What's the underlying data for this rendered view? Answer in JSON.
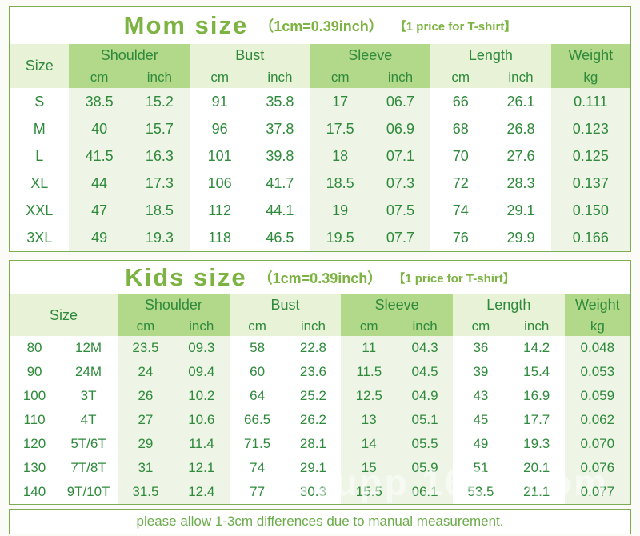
{
  "mom": {
    "title": "Mom size",
    "subtitle": "（1cm=0.39inch）",
    "tag": "【1 price for T-shirt】",
    "headers": {
      "size": "Size",
      "shoulder": "Shoulder",
      "bust": "Bust",
      "sleeve": "Sleeve",
      "length": "Length",
      "weight": "Weight",
      "cm": "cm",
      "inch": "inch",
      "kg": "kg"
    },
    "rows": [
      [
        "S",
        "38.5",
        "15.2",
        "91",
        "35.8",
        "17",
        "06.7",
        "66",
        "26.1",
        "0.111"
      ],
      [
        "M",
        "40",
        "15.7",
        "96",
        "37.8",
        "17.5",
        "06.9",
        "68",
        "26.8",
        "0.123"
      ],
      [
        "L",
        "41.5",
        "16.3",
        "101",
        "39.8",
        "18",
        "07.1",
        "70",
        "27.6",
        "0.125"
      ],
      [
        "XL",
        "44",
        "17.3",
        "106",
        "41.7",
        "18.5",
        "07.3",
        "72",
        "28.3",
        "0.137"
      ],
      [
        "XXL",
        "47",
        "18.5",
        "112",
        "44.1",
        "19",
        "07.5",
        "74",
        "29.1",
        "0.150"
      ],
      [
        "3XL",
        "49",
        "19.3",
        "118",
        "46.5",
        "19.5",
        "07.7",
        "76",
        "29.9",
        "0.166"
      ]
    ]
  },
  "kids": {
    "title": "Kids size",
    "subtitle": "（1cm=0.39inch）",
    "tag": "【1 price for T-shirt】",
    "headers": {
      "size": "Size",
      "shoulder": "Shoulder",
      "bust": "Bust",
      "sleeve": "Sleeve",
      "length": "Length",
      "weight": "Weight",
      "cm": "cm",
      "inch": "inch",
      "kg": "kg"
    },
    "rows": [
      [
        "80",
        "12M",
        "23.5",
        "09.3",
        "58",
        "22.8",
        "11",
        "04.3",
        "36",
        "14.2",
        "0.048"
      ],
      [
        "90",
        "24M",
        "24",
        "09.4",
        "60",
        "23.6",
        "11.5",
        "04.5",
        "39",
        "15.4",
        "0.053"
      ],
      [
        "100",
        "3T",
        "26",
        "10.2",
        "64",
        "25.2",
        "12.5",
        "04.9",
        "43",
        "16.9",
        "0.059"
      ],
      [
        "110",
        "4T",
        "27",
        "10.6",
        "66.5",
        "26.2",
        "13",
        "05.1",
        "45",
        "17.7",
        "0.062"
      ],
      [
        "120",
        "5T/6T",
        "29",
        "11.4",
        "71.5",
        "28.1",
        "14",
        "05.5",
        "49",
        "19.3",
        "0.070"
      ],
      [
        "130",
        "7T/8T",
        "31",
        "12.1",
        "74",
        "29.1",
        "15",
        "05.9",
        "51",
        "20.1",
        "0.076"
      ],
      [
        "140",
        "9T/10T",
        "31.5",
        "12.4",
        "77",
        "30.3",
        "15.5",
        "06.1",
        "53.5",
        "21.1",
        "0.077"
      ]
    ]
  },
  "note": "please allow 1-3cm differences due to manual measurement.",
  "watermark": "anyupp.1688.com",
  "colors": {
    "accent_green": "#7cb342",
    "header_dark": "#b2d88a",
    "header_light": "#e7f2d7",
    "row_tint": "#eef5e6",
    "text_green": "#2f8a3c",
    "border_green": "#7dac53"
  }
}
